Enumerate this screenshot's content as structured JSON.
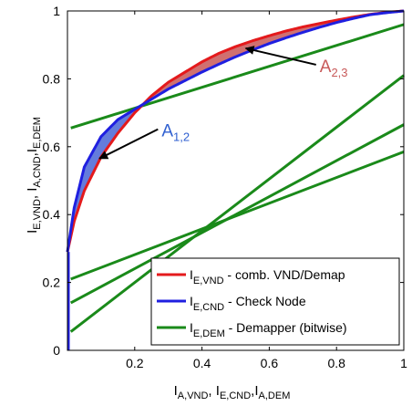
{
  "chart_data": {
    "type": "line",
    "xlabel": {
      "main": "I",
      "parts": [
        {
          "sub": "A,VND",
          "sep": ", I"
        },
        {
          "sub": "E,CND",
          "sep": ",I"
        },
        {
          "sub": "A,DEM",
          "sep": ""
        }
      ]
    },
    "ylabel": {
      "main": "I",
      "parts": [
        {
          "sub": "E,VND",
          "sep": ", I"
        },
        {
          "sub": "A,CND",
          "sep": ",I"
        },
        {
          "sub": "E,DEM",
          "sep": ""
        }
      ]
    },
    "xlim": [
      0,
      1
    ],
    "ylim": [
      0,
      1
    ],
    "xticks": [
      0.2,
      0.4,
      0.6,
      0.8,
      1
    ],
    "xtick_labels": [
      "0.2",
      "0.4",
      "0.6",
      "0.8",
      "1"
    ],
    "yticks": [
      0,
      0.2,
      0.4,
      0.6,
      0.8,
      1
    ],
    "ytick_labels": [
      "0",
      "0.2",
      "0.4",
      "0.6",
      "0.8",
      "1"
    ],
    "grid": false,
    "legend": "bottom-right",
    "series": [
      {
        "name": "E,VND",
        "legend_label": {
          "main": "I",
          "sub": "E,VND",
          "rest": " - comb. VND/Demap"
        },
        "color": "#e41a1c",
        "x": [
          0,
          0.02,
          0.05,
          0.1,
          0.15,
          0.2,
          0.25,
          0.3,
          0.35,
          0.4,
          0.45,
          0.5,
          0.55,
          0.6,
          0.65,
          0.7,
          0.75,
          0.8,
          0.85,
          0.9,
          0.95,
          1
        ],
        "y": [
          0.29,
          0.38,
          0.47,
          0.57,
          0.64,
          0.7,
          0.75,
          0.79,
          0.82,
          0.85,
          0.875,
          0.895,
          0.912,
          0.927,
          0.941,
          0.953,
          0.963,
          0.973,
          0.982,
          0.99,
          0.996,
          1.0
        ]
      },
      {
        "name": "E,CND",
        "legend_label": {
          "main": "I",
          "sub": "E,CND",
          "rest": " - Check Node"
        },
        "color": "#1f1fe0",
        "x": [
          0,
          0.02,
          0.05,
          0.1,
          0.15,
          0.2,
          0.25,
          0.3,
          0.35,
          0.4,
          0.45,
          0.5,
          0.55,
          0.6,
          0.65,
          0.7,
          0.75,
          0.8,
          0.85,
          0.9,
          0.95,
          1
        ],
        "y": [
          0.29,
          0.42,
          0.54,
          0.63,
          0.68,
          0.71,
          0.74,
          0.77,
          0.795,
          0.82,
          0.843,
          0.865,
          0.885,
          0.904,
          0.921,
          0.937,
          0.952,
          0.966,
          0.978,
          0.989,
          0.995,
          1.0
        ]
      },
      {
        "name": "E,DEM",
        "legend_label": {
          "main": "I",
          "sub": "E,DEM",
          "rest": " - Demapper (bitwise)"
        },
        "color": "#1a8a1a",
        "lines": [
          {
            "x": [
              0.01,
              1
            ],
            "y": [
              0.655,
              0.96
            ]
          },
          {
            "x": [
              0.01,
              1
            ],
            "y": [
              0.21,
              0.585
            ]
          },
          {
            "x": [
              0.01,
              1
            ],
            "y": [
              0.14,
              0.665
            ]
          },
          {
            "x": [
              0.01,
              1
            ],
            "y": [
              0.055,
              0.81
            ]
          }
        ]
      }
    ],
    "annotations": [
      {
        "text": "A",
        "sub": "1,2",
        "color": "#2f5fd0",
        "x": 0.28,
        "y": 0.63,
        "arrow_to": [
          0.095,
          0.565
        ]
      },
      {
        "text": "A",
        "sub": "2,3",
        "color": "#c85a5a",
        "x": 0.75,
        "y": 0.82,
        "arrow_to": [
          0.53,
          0.89
        ]
      }
    ],
    "fills": [
      {
        "between": [
          "E,VND",
          "E,CND"
        ],
        "where": "E,CND above",
        "color": "#3050d0"
      },
      {
        "between": [
          "E,VND",
          "E,CND"
        ],
        "where": "E,VND above",
        "color": "#c04040"
      }
    ]
  }
}
